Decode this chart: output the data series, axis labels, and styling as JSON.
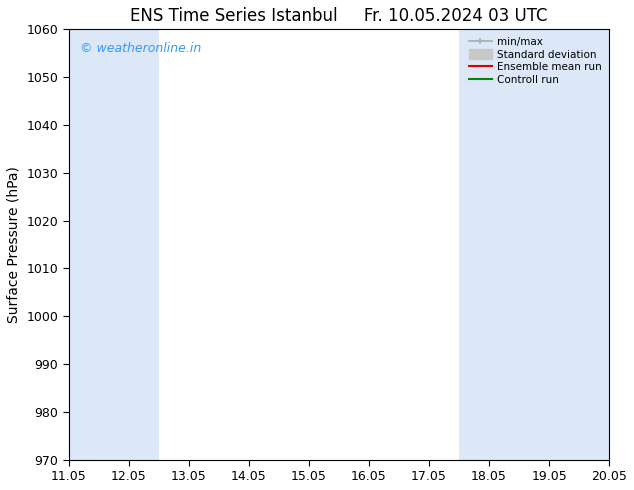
{
  "title": "ENS Time Series Istanbul",
  "title2": "Fr. 10.05.2024 03 UTC",
  "ylabel": "Surface Pressure (hPa)",
  "ylim": [
    970,
    1060
  ],
  "yticks": [
    970,
    980,
    990,
    1000,
    1010,
    1020,
    1030,
    1040,
    1050,
    1060
  ],
  "xtick_labels": [
    "11.05",
    "12.05",
    "13.05",
    "14.05",
    "15.05",
    "16.05",
    "17.05",
    "18.05",
    "19.05",
    "20.05"
  ],
  "watermark": "© weatheronline.in",
  "watermark_color": "#3399ff",
  "shaded_indices": [
    0,
    1,
    7,
    8,
    9
  ],
  "shade_color": "#dce8f8",
  "legend_entries": [
    {
      "label": "min/max",
      "color": "#aaaaaa"
    },
    {
      "label": "Standard deviation",
      "color": "#c8c8c8"
    },
    {
      "label": "Ensemble mean run",
      "color": "#dd0000"
    },
    {
      "label": "Controll run",
      "color": "#008800"
    }
  ],
  "bg_color": "#ffffff",
  "title_fontsize": 12,
  "label_fontsize": 10,
  "tick_fontsize": 9
}
